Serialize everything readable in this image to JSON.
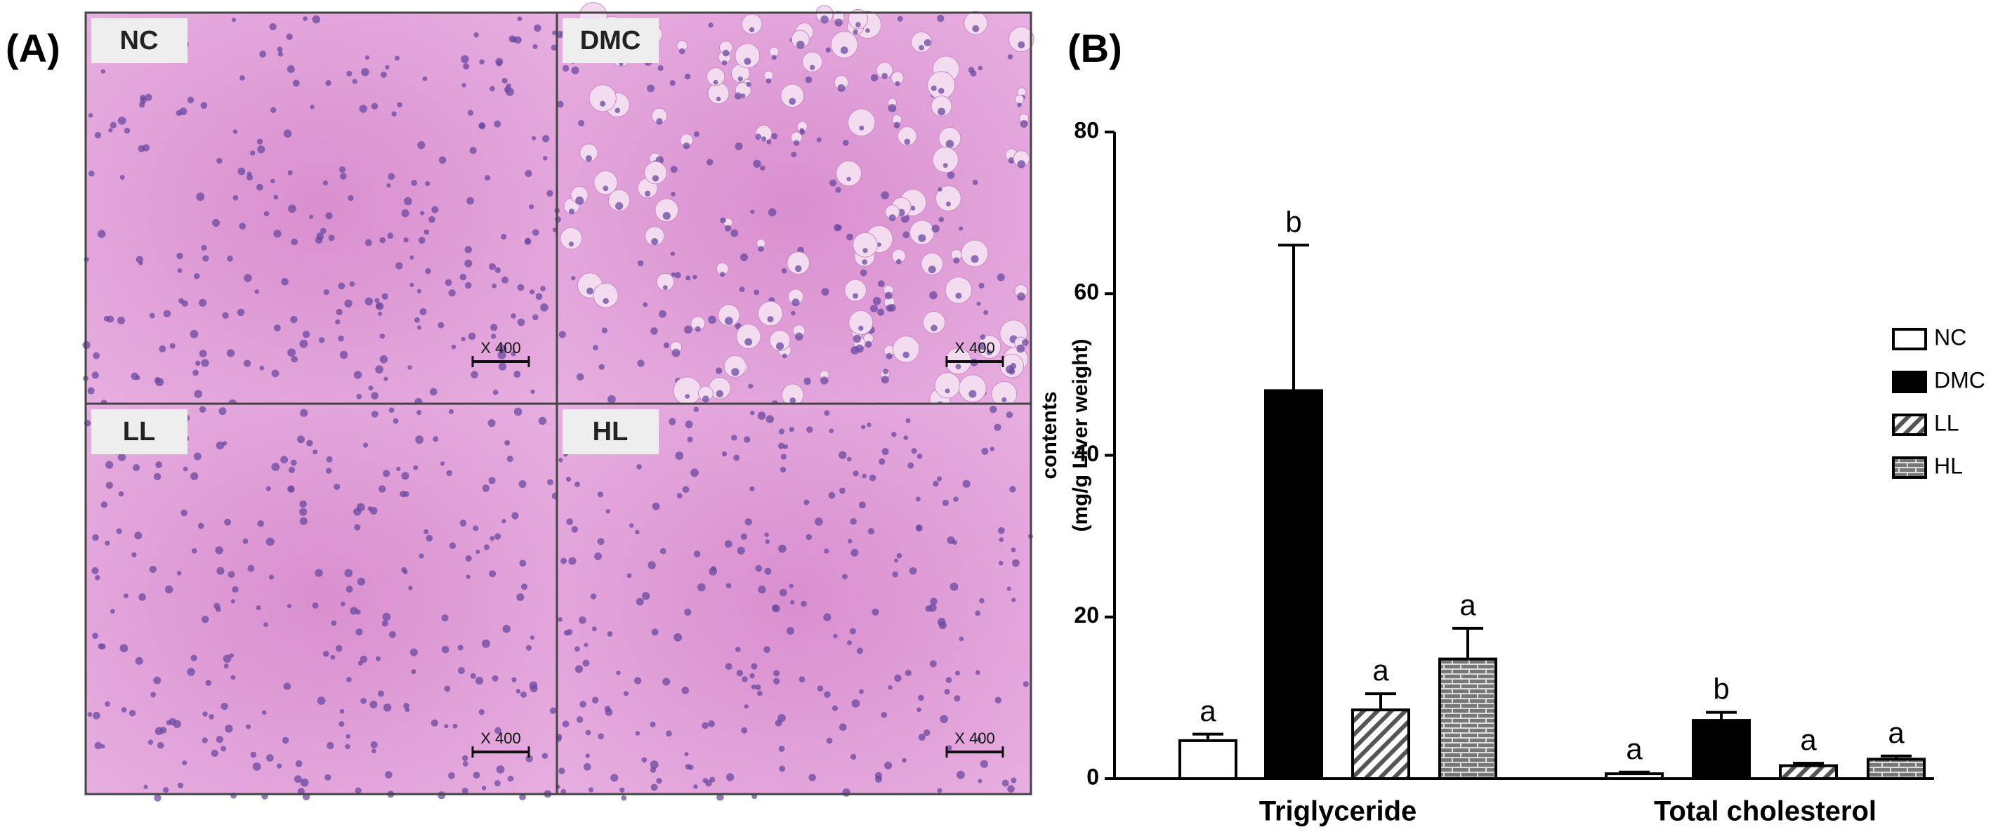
{
  "panel_labels": [
    "(A)",
    "(B)"
  ],
  "panel_a": {
    "images": [
      {
        "label": "NC",
        "scale": "X 400"
      },
      {
        "label": "DMC",
        "scale": "X 400"
      },
      {
        "label": "LL",
        "scale": "X 400"
      },
      {
        "label": "HL",
        "scale": "X 400"
      }
    ]
  },
  "chart_data": {
    "type": "bar",
    "y_label": [
      "contents",
      "(mg/g Liver weight)"
    ],
    "categories": [
      "Triglyceride",
      "Total cholesterol"
    ],
    "series": [
      {
        "name": "NC",
        "color": "#ffffff",
        "values": [
          4.7,
          0.6
        ],
        "errors": [
          0.8,
          0.2
        ],
        "letters": [
          "a",
          "a"
        ]
      },
      {
        "name": "DMC",
        "color": "#000000",
        "values": [
          48,
          7.2
        ],
        "errors": [
          18,
          1.0
        ],
        "letters": [
          "b",
          "b"
        ]
      },
      {
        "name": "LL",
        "color": "#ffffff",
        "pattern": "diagonal",
        "values": [
          8.5,
          1.6
        ],
        "errors": [
          2.0,
          0.3
        ],
        "letters": [
          "a",
          "a"
        ]
      },
      {
        "name": "HL",
        "color": "#ffffff",
        "pattern": "brick",
        "values": [
          14.8,
          2.4
        ],
        "errors": [
          3.8,
          0.4
        ],
        "letters": [
          "a",
          "a"
        ]
      }
    ],
    "ylim": [
      0,
      80
    ],
    "yticks": [
      0,
      20,
      40,
      60,
      80
    ],
    "grid": false,
    "legend": "right"
  }
}
